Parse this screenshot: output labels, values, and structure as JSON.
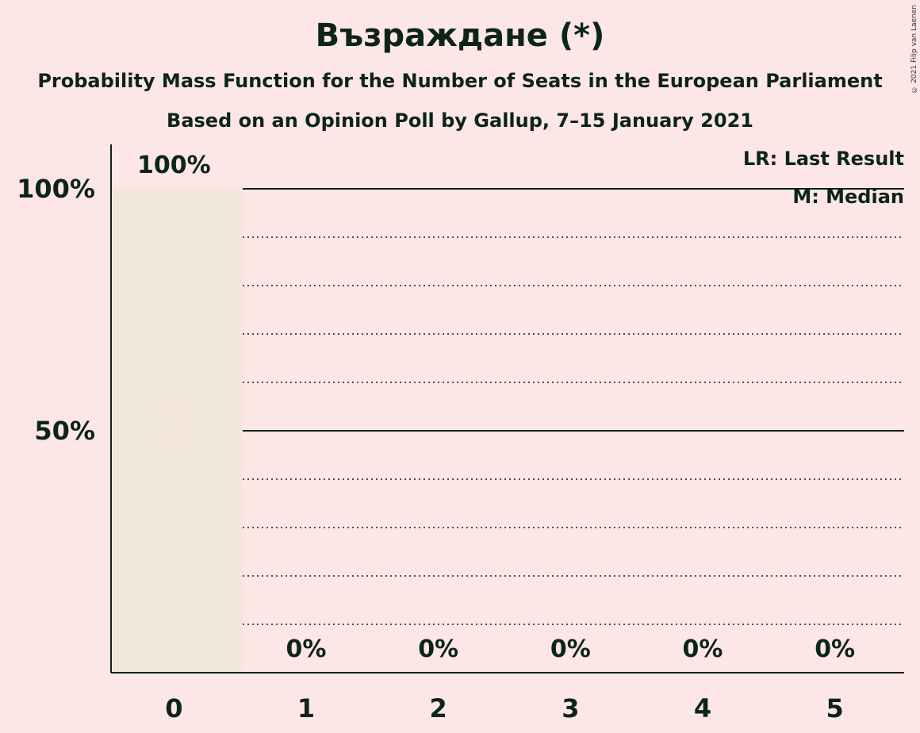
{
  "chart_data": {
    "type": "bar",
    "title": "Възраждане (*)",
    "subtitle": [
      "Probability Mass Function for the Number of Seats in the European Parliament",
      "Based on an Opinion Poll by Gallup, 7–15 January 2021"
    ],
    "categories": [
      "0",
      "1",
      "2",
      "3",
      "4",
      "5"
    ],
    "values": [
      100,
      0,
      0,
      0,
      0,
      0
    ],
    "value_labels": [
      "100%",
      "0%",
      "0%",
      "0%",
      "0%",
      "0%"
    ],
    "y_ticks": [
      {
        "value": 50,
        "label": "50%"
      },
      {
        "value": 100,
        "label": "100%"
      }
    ],
    "ylim": [
      0,
      100
    ],
    "grid": "dotted every 10%, solid at 50% and 100%",
    "legend": [
      "LR: Last Result",
      "M: Median"
    ],
    "legend_position": "top-right",
    "bar_markers": {
      "category": "0",
      "labels": [
        "M",
        "LR"
      ]
    },
    "colors": {
      "bar": "#f2e8da",
      "background": "#fde6e6",
      "text": "#0d2418"
    }
  },
  "copyright": "© 2021 Filip van Laenen"
}
